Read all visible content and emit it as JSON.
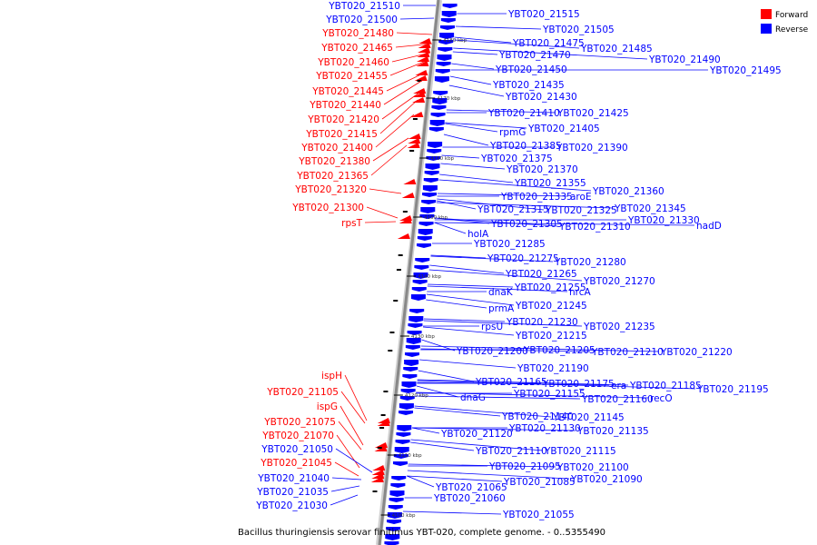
{
  "caption": "Bacillus thuringiensis serovar finitimus YBT-020, complete genome. - 0..5355490",
  "legend": [
    {
      "label": "Forward",
      "color": "#ff0000"
    },
    {
      "label": "Reverse",
      "color": "#0000ff"
    }
  ],
  "colors": {
    "forward": "#ff0000",
    "reverse": "#0000ff",
    "axis": "#888888"
  },
  "ticks": [
    "4180 kbp",
    "4170 kbp",
    "4160 kbp",
    "4150 kbp",
    "4140 kbp",
    "4130 kbp",
    "4120 kbp",
    "4110 kbp",
    "4100 kbp"
  ],
  "left_labels": [
    {
      "text": "YBT020_21510",
      "strand": "reverse"
    },
    {
      "text": "YBT020_21500",
      "strand": "reverse"
    },
    {
      "text": "YBT020_21480",
      "strand": "forward"
    },
    {
      "text": "YBT020_21465",
      "strand": "forward"
    },
    {
      "text": "YBT020_21460",
      "strand": "forward"
    },
    {
      "text": "YBT020_21455",
      "strand": "forward"
    },
    {
      "text": "YBT020_21445",
      "strand": "forward"
    },
    {
      "text": "YBT020_21440",
      "strand": "forward"
    },
    {
      "text": "YBT020_21420",
      "strand": "forward"
    },
    {
      "text": "YBT020_21415",
      "strand": "forward"
    },
    {
      "text": "YBT020_21400",
      "strand": "forward"
    },
    {
      "text": "YBT020_21380",
      "strand": "forward"
    },
    {
      "text": "YBT020_21365",
      "strand": "forward"
    },
    {
      "text": "YBT020_21320",
      "strand": "forward"
    },
    {
      "text": "YBT020_21300",
      "strand": "forward"
    },
    {
      "text": "rpsT",
      "strand": "forward"
    },
    {
      "text": "ispH",
      "strand": "forward"
    },
    {
      "text": "YBT020_21105",
      "strand": "forward"
    },
    {
      "text": "ispG",
      "strand": "forward"
    },
    {
      "text": "YBT020_21075",
      "strand": "forward"
    },
    {
      "text": "YBT020_21070",
      "strand": "forward"
    },
    {
      "text": "YBT020_21050",
      "strand": "reverse"
    },
    {
      "text": "YBT020_21045",
      "strand": "forward"
    },
    {
      "text": "YBT020_21040",
      "strand": "reverse"
    },
    {
      "text": "YBT020_21035",
      "strand": "reverse"
    },
    {
      "text": "YBT020_21030",
      "strand": "reverse"
    }
  ],
  "right_labels": [
    "YBT020_21515",
    "YBT020_21505",
    "YBT020_21475",
    "YBT020_21485",
    "YBT020_21490",
    "YBT020_21495",
    "YBT020_21470",
    "YBT020_21450",
    "YBT020_21435",
    "YBT020_21430",
    "YBT020_21410",
    "YBT020_21425",
    "YBT020_21405",
    "rpmG",
    "YBT020_21385",
    "YBT020_21390",
    "YBT020_21375",
    "YBT020_21370",
    "YBT020_21355",
    "YBT020_21360",
    "YBT020_21335",
    "aroE",
    "YBT020_21345",
    "YBT020_21315",
    "YBT020_21325",
    "YBT020_21330",
    "nadD",
    "YBT020_21305",
    "YBT020_21310",
    "holA",
    "YBT020_21285",
    "YBT020_21275",
    "YBT020_21280",
    "YBT020_21265",
    "YBT020_21270",
    "dnaK",
    "YBT020_21255",
    "hrcA",
    "prmA",
    "YBT020_21245",
    "rpsU",
    "YBT020_21230",
    "YBT020_21235",
    "YBT020_21215",
    "YBT020_21200",
    "YBT020_21205",
    "YBT020_21210",
    "YBT020_21220",
    "YBT020_21190",
    "YBT020_21165",
    "YBT020_21175",
    "era",
    "YBT020_21185",
    "YBT020_21195",
    "dnaG",
    "YBT020_21155",
    "YBT020_21160",
    "recO",
    "YBT020_21140",
    "YBT020_21145",
    "YBT020_21130",
    "YBT020_21135",
    "YBT020_21120",
    "YBT020_21110",
    "YBT020_21115",
    "YBT020_21095",
    "YBT020_21100",
    "YBT020_21085",
    "YBT020_21090",
    "YBT020_21065",
    "YBT020_21060",
    "YBT020_21055"
  ]
}
